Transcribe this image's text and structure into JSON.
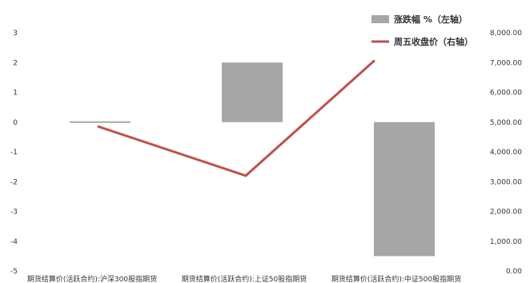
{
  "chart_data": {
    "type": "bar+line",
    "categories": [
      "期货结算价(活跃合约):沪深300股指期货",
      "期货结算价(活跃合约):上证50股指期货",
      "期货结算价(活跃合约):中证500股指期货"
    ],
    "series": [
      {
        "name": "涨跌幅 %（左轴）",
        "type": "bar",
        "axis": "left",
        "color": "#a6a6a6",
        "values": [
          -0.05,
          2.0,
          -4.5
        ]
      },
      {
        "name": "周五收盘价（右轴）",
        "type": "line",
        "axis": "right",
        "color": "#c0504d",
        "values": [
          4850,
          3200,
          7050
        ]
      }
    ],
    "y_left": {
      "ylim": [
        -5,
        3
      ],
      "ticks": [
        "3",
        "2",
        "1",
        "0",
        "-1",
        "-2",
        "-3",
        "-4",
        "-5"
      ]
    },
    "y_right": {
      "ylim": [
        0,
        8000
      ],
      "ticks": [
        "8,000.00",
        "7,000.00",
        "6,000.00",
        "5,000.00",
        "4,000.00",
        "3,000.00",
        "2,000.00",
        "1,000.00",
        "0.00"
      ]
    },
    "grid": false,
    "legend_position": "top-right"
  }
}
